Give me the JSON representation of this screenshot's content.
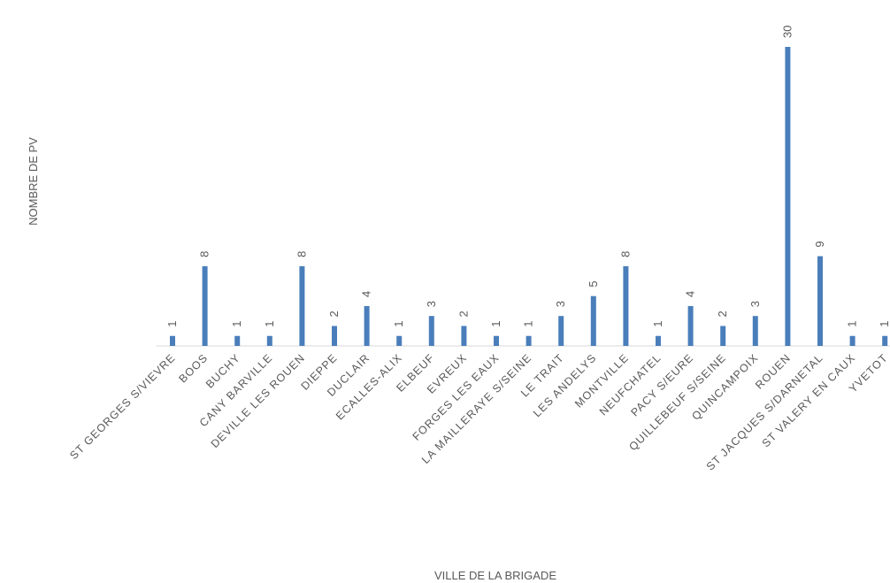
{
  "chart_data": {
    "type": "bar",
    "xlabel": "VILLE DE LA BRIGADE",
    "ylabel": "NOMBRE DE PV",
    "categories": [
      "ST GEORGES S/VIEVRE",
      "BOOS",
      "BUCHY",
      "CANY BARVILLE",
      "DEVILLE LES ROUEN",
      "DIEPPE",
      "DUCLAIR",
      "ECALLES-ALIX",
      "ELBEUF",
      "EVREUX",
      "FORGES LES EAUX",
      "LA MAILLERAYE S/SEINE",
      "LE TRAIT",
      "LES ANDELYS",
      "MONTVILLE",
      "NEUFCHATEL",
      "PACY S/EURE",
      "QUILLEBEUF S/SEINE",
      "QUINCAMPOIX",
      "ROUEN",
      "ST JACQUES S/DARNETAL",
      "ST VALERY EN CAUX",
      "YVETOT"
    ],
    "values": [
      1,
      8,
      1,
      1,
      8,
      2,
      4,
      1,
      3,
      2,
      1,
      1,
      3,
      5,
      8,
      1,
      4,
      2,
      3,
      30,
      9,
      1,
      1
    ],
    "color": "#4a7ebb",
    "ylim": [
      0,
      30
    ]
  }
}
